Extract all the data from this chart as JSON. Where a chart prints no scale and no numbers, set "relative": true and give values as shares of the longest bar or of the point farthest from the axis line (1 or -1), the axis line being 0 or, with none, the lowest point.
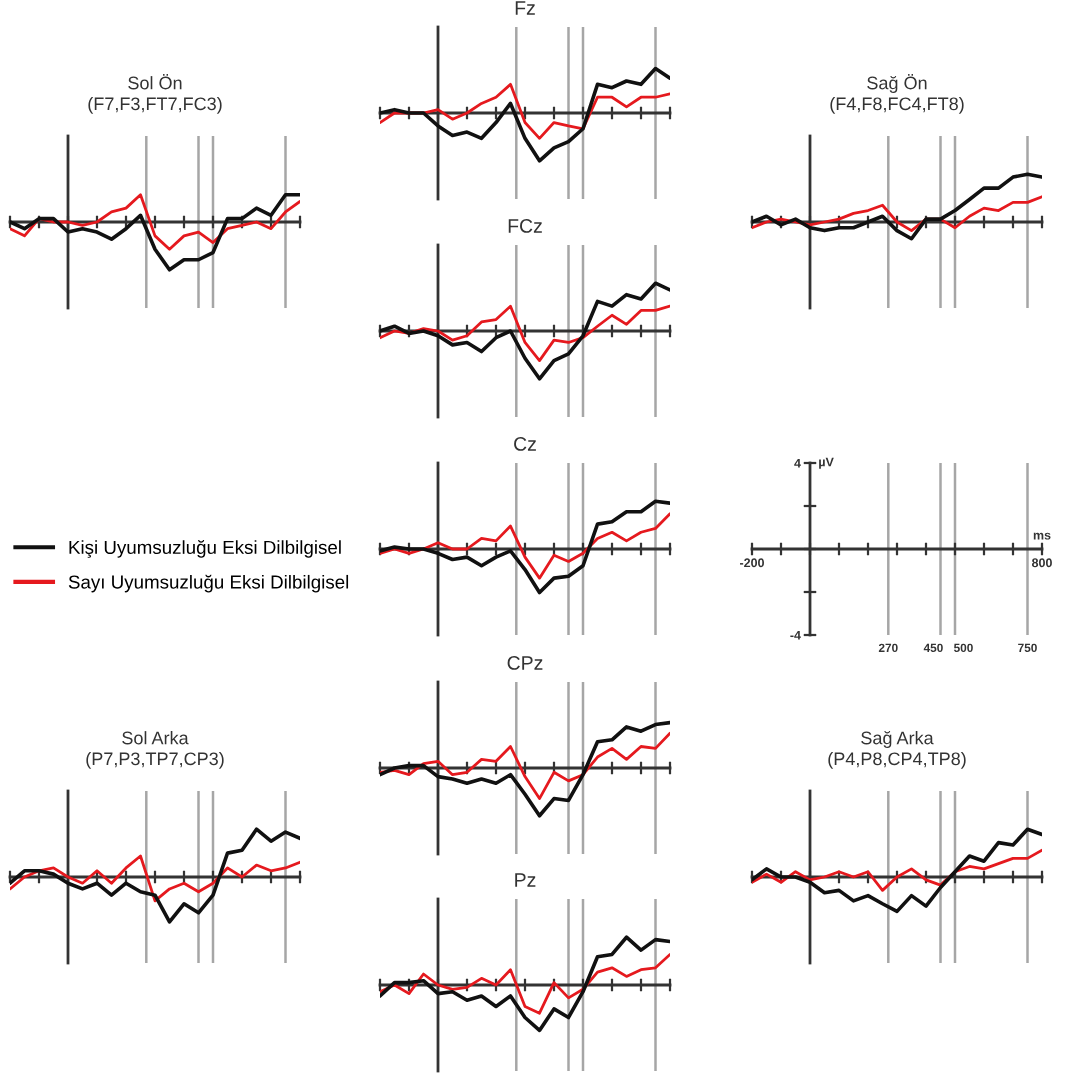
{
  "chart_data": [
    {
      "type": "line",
      "title": "Fz",
      "relative": true,
      "grid": "x",
      "categories": [
        null,
        null,
        null,
        null,
        null,
        null,
        null,
        null,
        null,
        null,
        null,
        null,
        null,
        null,
        null,
        null,
        null,
        null,
        null,
        null,
        null
      ],
      "series": [
        {
          "color": "#111111",
          "values": [
            0,
            0.07,
            0,
            0,
            -0.27,
            -0.47,
            -0.4,
            -0.53,
            -0.2,
            0.2,
            -0.53,
            -1,
            -0.73,
            -0.6,
            -0.33,
            0.6,
            0.53,
            0.67,
            0.6,
            0.93,
            0.73
          ]
        },
        {
          "color": "#e5191e",
          "values": [
            -0.2,
            0,
            0,
            0,
            0.07,
            -0.13,
            0,
            0.2,
            0.33,
            0.6,
            -0.2,
            -0.53,
            -0.2,
            -0.27,
            -0.33,
            0.33,
            0.33,
            0.13,
            0.33,
            0.33,
            0.4
          ]
        }
      ]
    },
    {
      "type": "line",
      "title": "Sol Ön",
      "subtitle": "(F7,F3,FT7,FC3)",
      "relative": true,
      "grid": "x",
      "categories": [
        null,
        null,
        null,
        null,
        null,
        null,
        null,
        null,
        null,
        null,
        null,
        null,
        null,
        null,
        null,
        null,
        null,
        null,
        null,
        null,
        null
      ],
      "series": [
        {
          "color": "#111111",
          "values": [
            0,
            -0.14,
            0.07,
            0.07,
            -0.21,
            -0.14,
            -0.21,
            -0.36,
            -0.14,
            0.14,
            -0.57,
            -1,
            -0.79,
            -0.79,
            -0.64,
            0.07,
            0.07,
            0.29,
            0.14,
            0.57,
            0.57
          ]
        },
        {
          "color": "#e5191e",
          "values": [
            -0.14,
            -0.29,
            0.07,
            0,
            0,
            -0.07,
            0,
            0.21,
            0.29,
            0.57,
            -0.29,
            -0.57,
            -0.29,
            -0.21,
            -0.43,
            -0.14,
            -0.07,
            0,
            -0.14,
            0.21,
            0.43
          ]
        }
      ]
    },
    {
      "type": "line",
      "title": "Sağ Ön",
      "subtitle": "(F4,F8,FC4,FT8)",
      "relative": true,
      "grid": "x",
      "categories": [
        null,
        null,
        null,
        null,
        null,
        null,
        null,
        null,
        null,
        null,
        null,
        null,
        null,
        null,
        null,
        null,
        null,
        null,
        null,
        null,
        null
      ],
      "series": [
        {
          "color": "#111111",
          "values": [
            0,
            0.12,
            -0.06,
            0.06,
            -0.12,
            -0.18,
            -0.12,
            -0.12,
            0,
            0.12,
            -0.18,
            -0.35,
            0.06,
            0.06,
            0.24,
            0.47,
            0.71,
            0.71,
            0.94,
            1,
            0.94
          ]
        },
        {
          "color": "#e5191e",
          "values": [
            -0.12,
            0,
            0.06,
            0,
            -0.06,
            0,
            0.06,
            0.18,
            0.24,
            0.35,
            0,
            -0.18,
            0.06,
            0.06,
            -0.12,
            0.12,
            0.29,
            0.24,
            0.41,
            0.41,
            0.53
          ]
        }
      ]
    },
    {
      "type": "line",
      "title": "FCz",
      "relative": true,
      "grid": "x",
      "categories": [
        null,
        null,
        null,
        null,
        null,
        null,
        null,
        null,
        null,
        null,
        null,
        null,
        null,
        null,
        null,
        null,
        null,
        null,
        null,
        null,
        null
      ],
      "series": [
        {
          "color": "#111111",
          "values": [
            0,
            0.1,
            -0.05,
            0,
            -0.1,
            -0.29,
            -0.24,
            -0.43,
            -0.14,
            0,
            -0.57,
            -1,
            -0.62,
            -0.48,
            -0.1,
            0.62,
            0.52,
            0.76,
            0.67,
            1,
            0.86
          ]
        },
        {
          "color": "#e5191e",
          "values": [
            -0.14,
            0,
            -0.05,
            0.05,
            0,
            -0.19,
            -0.1,
            0.19,
            0.24,
            0.52,
            -0.24,
            -0.62,
            -0.19,
            -0.24,
            -0.14,
            0.1,
            0.33,
            0.14,
            0.43,
            0.43,
            0.52
          ]
        }
      ]
    },
    {
      "type": "line",
      "title": "Cz",
      "relative": true,
      "grid": "x",
      "legend": "left",
      "categories": [
        null,
        null,
        null,
        null,
        null,
        null,
        null,
        null,
        null,
        null,
        null,
        null,
        null,
        null,
        null,
        null,
        null,
        null,
        null,
        null,
        null
      ],
      "series": [
        {
          "name": "Kişi Uyumsuzluğu Eksi Dilbilgisel",
          "color": "#111111",
          "values": [
            -0.04,
            0.04,
            0,
            0,
            -0.09,
            -0.22,
            -0.17,
            -0.35,
            -0.17,
            -0.04,
            -0.43,
            -0.91,
            -0.61,
            -0.57,
            -0.35,
            0.52,
            0.57,
            0.78,
            0.78,
            1,
            0.96
          ]
        },
        {
          "name": "Sayı Uyumsuzluğu Eksi Dilbilgisel",
          "color": "#e5191e",
          "values": [
            -0.09,
            0,
            -0.09,
            0,
            0.13,
            0,
            0,
            0.22,
            0.17,
            0.48,
            -0.17,
            -0.61,
            -0.13,
            -0.26,
            -0.09,
            0.22,
            0.35,
            0.17,
            0.35,
            0.43,
            0.74
          ]
        }
      ]
    },
    {
      "type": "line",
      "xlabel": "ms",
      "ylabel": "µV",
      "xlim": [
        -200,
        800
      ],
      "ylim": [
        -4,
        4
      ],
      "xticks": [
        -200,
        {
          "value": -100,
          "label": null
        },
        {
          "value": 0,
          "label": null
        },
        {
          "value": 100,
          "label": null
        },
        {
          "value": 200,
          "label": null
        },
        {
          "value": 300,
          "label": null
        },
        {
          "value": 400,
          "label": null
        },
        {
          "value": 500,
          "label": null
        },
        {
          "value": 600,
          "label": null
        },
        {
          "value": 700,
          "label": null
        },
        800
      ],
      "yticks": [
        -4,
        {
          "value": -2,
          "label": null
        },
        {
          "value": 0,
          "label": null
        },
        {
          "value": 2,
          "label": null
        },
        4
      ],
      "ref_lines": [
        {
          "axis": "x",
          "value": 270,
          "label": "270",
          "color": "#a6a6a6"
        },
        {
          "axis": "x",
          "value": 450,
          "label": "450",
          "color": "#a6a6a6"
        },
        {
          "axis": "x",
          "value": 500,
          "label": "500",
          "color": "#a6a6a6"
        },
        {
          "axis": "x",
          "value": 750,
          "label": "750",
          "color": "#a6a6a6"
        }
      ]
    },
    {
      "type": "line",
      "title": "CPz",
      "relative": true,
      "grid": "x",
      "categories": [
        null,
        null,
        null,
        null,
        null,
        null,
        null,
        null,
        null,
        null,
        null,
        null,
        null,
        null,
        null,
        null,
        null,
        null,
        null,
        null,
        null
      ],
      "series": [
        {
          "color": "#111111",
          "values": [
            -0.14,
            0,
            0.05,
            0.05,
            -0.18,
            -0.23,
            -0.32,
            -0.23,
            -0.32,
            -0.14,
            -0.55,
            -1,
            -0.64,
            -0.68,
            -0.14,
            0.55,
            0.59,
            0.86,
            0.77,
            0.91,
            0.95
          ]
        },
        {
          "color": "#e5191e",
          "values": [
            -0.09,
            -0.05,
            -0.14,
            0.09,
            0.14,
            -0.14,
            -0.09,
            0.18,
            0.14,
            0.45,
            -0.18,
            -0.64,
            -0.09,
            -0.27,
            -0.14,
            0.23,
            0.41,
            0.18,
            0.45,
            0.41,
            0.73
          ]
        }
      ]
    },
    {
      "type": "line",
      "title": "Sol Arka",
      "subtitle": "(P7,P3,TP7,CP3)",
      "relative": true,
      "grid": "x",
      "categories": [
        null,
        null,
        null,
        null,
        null,
        null,
        null,
        null,
        null,
        null,
        null,
        null,
        null,
        null,
        null,
        null,
        null,
        null,
        null,
        null,
        null
      ],
      "series": [
        {
          "color": "#111111",
          "values": [
            -0.13,
            0.13,
            0.13,
            0.06,
            -0.13,
            -0.25,
            -0.13,
            -0.38,
            -0.13,
            -0.31,
            -0.38,
            -0.94,
            -0.56,
            -0.75,
            -0.38,
            0.5,
            0.56,
            1,
            0.75,
            0.94,
            0.81
          ]
        },
        {
          "color": "#e5191e",
          "values": [
            -0.25,
            0,
            0.13,
            0.19,
            0,
            -0.13,
            0.13,
            -0.13,
            0.19,
            0.44,
            -0.5,
            -0.25,
            -0.13,
            -0.31,
            -0.13,
            0.19,
            0,
            0.25,
            0.13,
            0.19,
            0.31
          ]
        }
      ]
    },
    {
      "type": "line",
      "title": "Sağ Arka",
      "subtitle": "(P4,P8,CP4,TP8)",
      "relative": true,
      "grid": "x",
      "categories": [
        null,
        null,
        null,
        null,
        null,
        null,
        null,
        null,
        null,
        null,
        null,
        null,
        null,
        null,
        null,
        null,
        null,
        null,
        null,
        null,
        null
      ],
      "series": [
        {
          "color": "#111111",
          "values": [
            -0.06,
            0.17,
            0,
            0,
            -0.11,
            -0.33,
            -0.28,
            -0.5,
            -0.39,
            -0.56,
            -0.72,
            -0.39,
            -0.61,
            -0.22,
            0.11,
            0.44,
            0.33,
            0.72,
            0.67,
            1,
            0.89
          ]
        },
        {
          "color": "#e5191e",
          "values": [
            -0.11,
            0.06,
            -0.11,
            0.11,
            -0.06,
            0,
            0.11,
            0,
            0.11,
            -0.28,
            0,
            0.17,
            -0.06,
            -0.17,
            0.11,
            0.22,
            0.17,
            0.28,
            0.39,
            0.39,
            0.56
          ]
        }
      ]
    },
    {
      "type": "line",
      "title": "Pz",
      "relative": true,
      "grid": "x",
      "categories": [
        null,
        null,
        null,
        null,
        null,
        null,
        null,
        null,
        null,
        null,
        null,
        null,
        null,
        null,
        null,
        null,
        null,
        null,
        null,
        null,
        null
      ],
      "series": [
        {
          "color": "#111111",
          "values": [
            -0.23,
            0.05,
            0.05,
            0.09,
            -0.18,
            -0.14,
            -0.32,
            -0.23,
            -0.45,
            -0.23,
            -0.68,
            -0.95,
            -0.5,
            -0.68,
            -0.14,
            0.59,
            0.64,
            1,
            0.73,
            0.95,
            0.91
          ]
        },
        {
          "color": "#e5191e",
          "values": [
            -0.14,
            0,
            -0.18,
            0.23,
            0,
            -0.09,
            -0.05,
            0.14,
            0,
            0.32,
            -0.45,
            -0.59,
            0.05,
            -0.27,
            -0.09,
            0.27,
            0.36,
            0.18,
            0.32,
            0.36,
            0.64
          ]
        }
      ]
    }
  ]
}
